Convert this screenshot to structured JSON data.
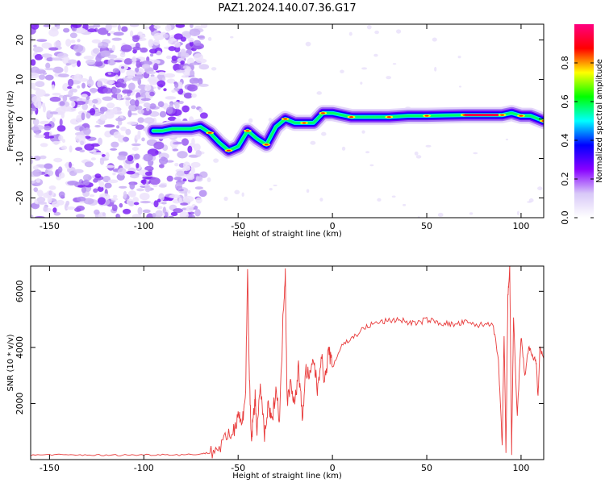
{
  "title": "PAZ1.2024.140.07.36.G17",
  "colors": {
    "snr_line": "#e83a3a",
    "frame": "#000000"
  },
  "chart_data": [
    {
      "type": "heatmap",
      "xlabel": "Height of straight line (km)",
      "ylabel": "Frequency (Hz)",
      "xlim": [
        -160,
        112
      ],
      "ylim": [
        -25,
        24
      ],
      "x_ticks": [
        -150,
        -100,
        -50,
        0,
        50,
        100
      ],
      "y_ticks": [
        -20,
        -10,
        0,
        10,
        20
      ],
      "colorbar": {
        "label": "Normalized spectral amplitude",
        "range": [
          0,
          1
        ],
        "ticks": [
          "0.0",
          "0.2",
          "0.4",
          "0.6",
          "0.8"
        ],
        "colormap": [
          "#ffffff",
          "#d8c8f8",
          "#8800ff",
          "#0000ff",
          "#00ffff",
          "#00ff00",
          "#ffff00",
          "#ff0000",
          "#ff0080"
        ]
      },
      "ridge_x": [
        -95,
        -90,
        -85,
        -80,
        -75,
        -70,
        -65,
        -60,
        -55,
        -50,
        -45,
        -40,
        -35,
        -30,
        -25,
        -20,
        -15,
        -10,
        -5,
        0,
        10,
        20,
        30,
        40,
        50,
        60,
        70,
        80,
        90,
        95,
        100,
        105,
        112
      ],
      "ridge_y": [
        -3,
        -3,
        -2.5,
        -2.5,
        -2.5,
        -2,
        -3.5,
        -6,
        -8,
        -7,
        -3,
        -5,
        -6.5,
        -2,
        0,
        -1,
        -1,
        -1,
        1.5,
        1.5,
        0.5,
        0.5,
        0.5,
        0.8,
        0.8,
        0.9,
        1,
        1,
        1,
        1.5,
        0.8,
        0.8,
        -0.5
      ]
    },
    {
      "type": "line",
      "xlabel": "Height of straight line (km)",
      "ylabel": "SNR (10 * v/v)",
      "xlim": [
        -160,
        112
      ],
      "ylim": [
        0,
        6900
      ],
      "x_ticks": [
        -150,
        -100,
        -50,
        0,
        50,
        100
      ],
      "y_ticks": [
        2000,
        4000,
        6000
      ],
      "series": [
        {
          "x": [
            -160,
            -150,
            -140,
            -130,
            -120,
            -110,
            -100,
            -90,
            -80,
            -70,
            -65,
            -60,
            -55,
            -52,
            -50,
            -48,
            -46,
            -45,
            -44,
            -43,
            -42,
            -41,
            -40,
            -38,
            -36,
            -34,
            -32,
            -30,
            -28,
            -26,
            -25,
            -24,
            -22,
            -20,
            -18,
            -16,
            -14,
            -12,
            -10,
            -8,
            -6,
            -4,
            -2,
            0,
            5,
            10,
            15,
            20,
            25,
            30,
            35,
            40,
            45,
            50,
            55,
            60,
            65,
            70,
            75,
            80,
            85,
            88,
            90,
            91,
            92,
            93,
            94,
            95,
            96,
            98,
            100,
            102,
            104,
            106,
            108,
            109,
            110,
            112
          ],
          "y": [
            150,
            180,
            160,
            170,
            150,
            165,
            170,
            180,
            170,
            200,
            250,
            450,
            800,
            1100,
            1700,
            1200,
            2500,
            6700,
            2800,
            600,
            1500,
            2200,
            1100,
            2600,
            800,
            1900,
            1300,
            2600,
            1400,
            5400,
            6700,
            2000,
            2800,
            1900,
            3300,
            1500,
            3200,
            2900,
            3600,
            2500,
            3700,
            2800,
            3900,
            3300,
            4100,
            4300,
            4600,
            4800,
            4900,
            4950,
            5000,
            4900,
            4850,
            5000,
            4900,
            4850,
            4800,
            4900,
            4800,
            4800,
            4900,
            3500,
            500,
            4400,
            200,
            5800,
            6850,
            200,
            5000,
            1500,
            4400,
            3000,
            4000,
            3700,
            3500,
            2200,
            4000,
            3600
          ]
        }
      ]
    }
  ]
}
